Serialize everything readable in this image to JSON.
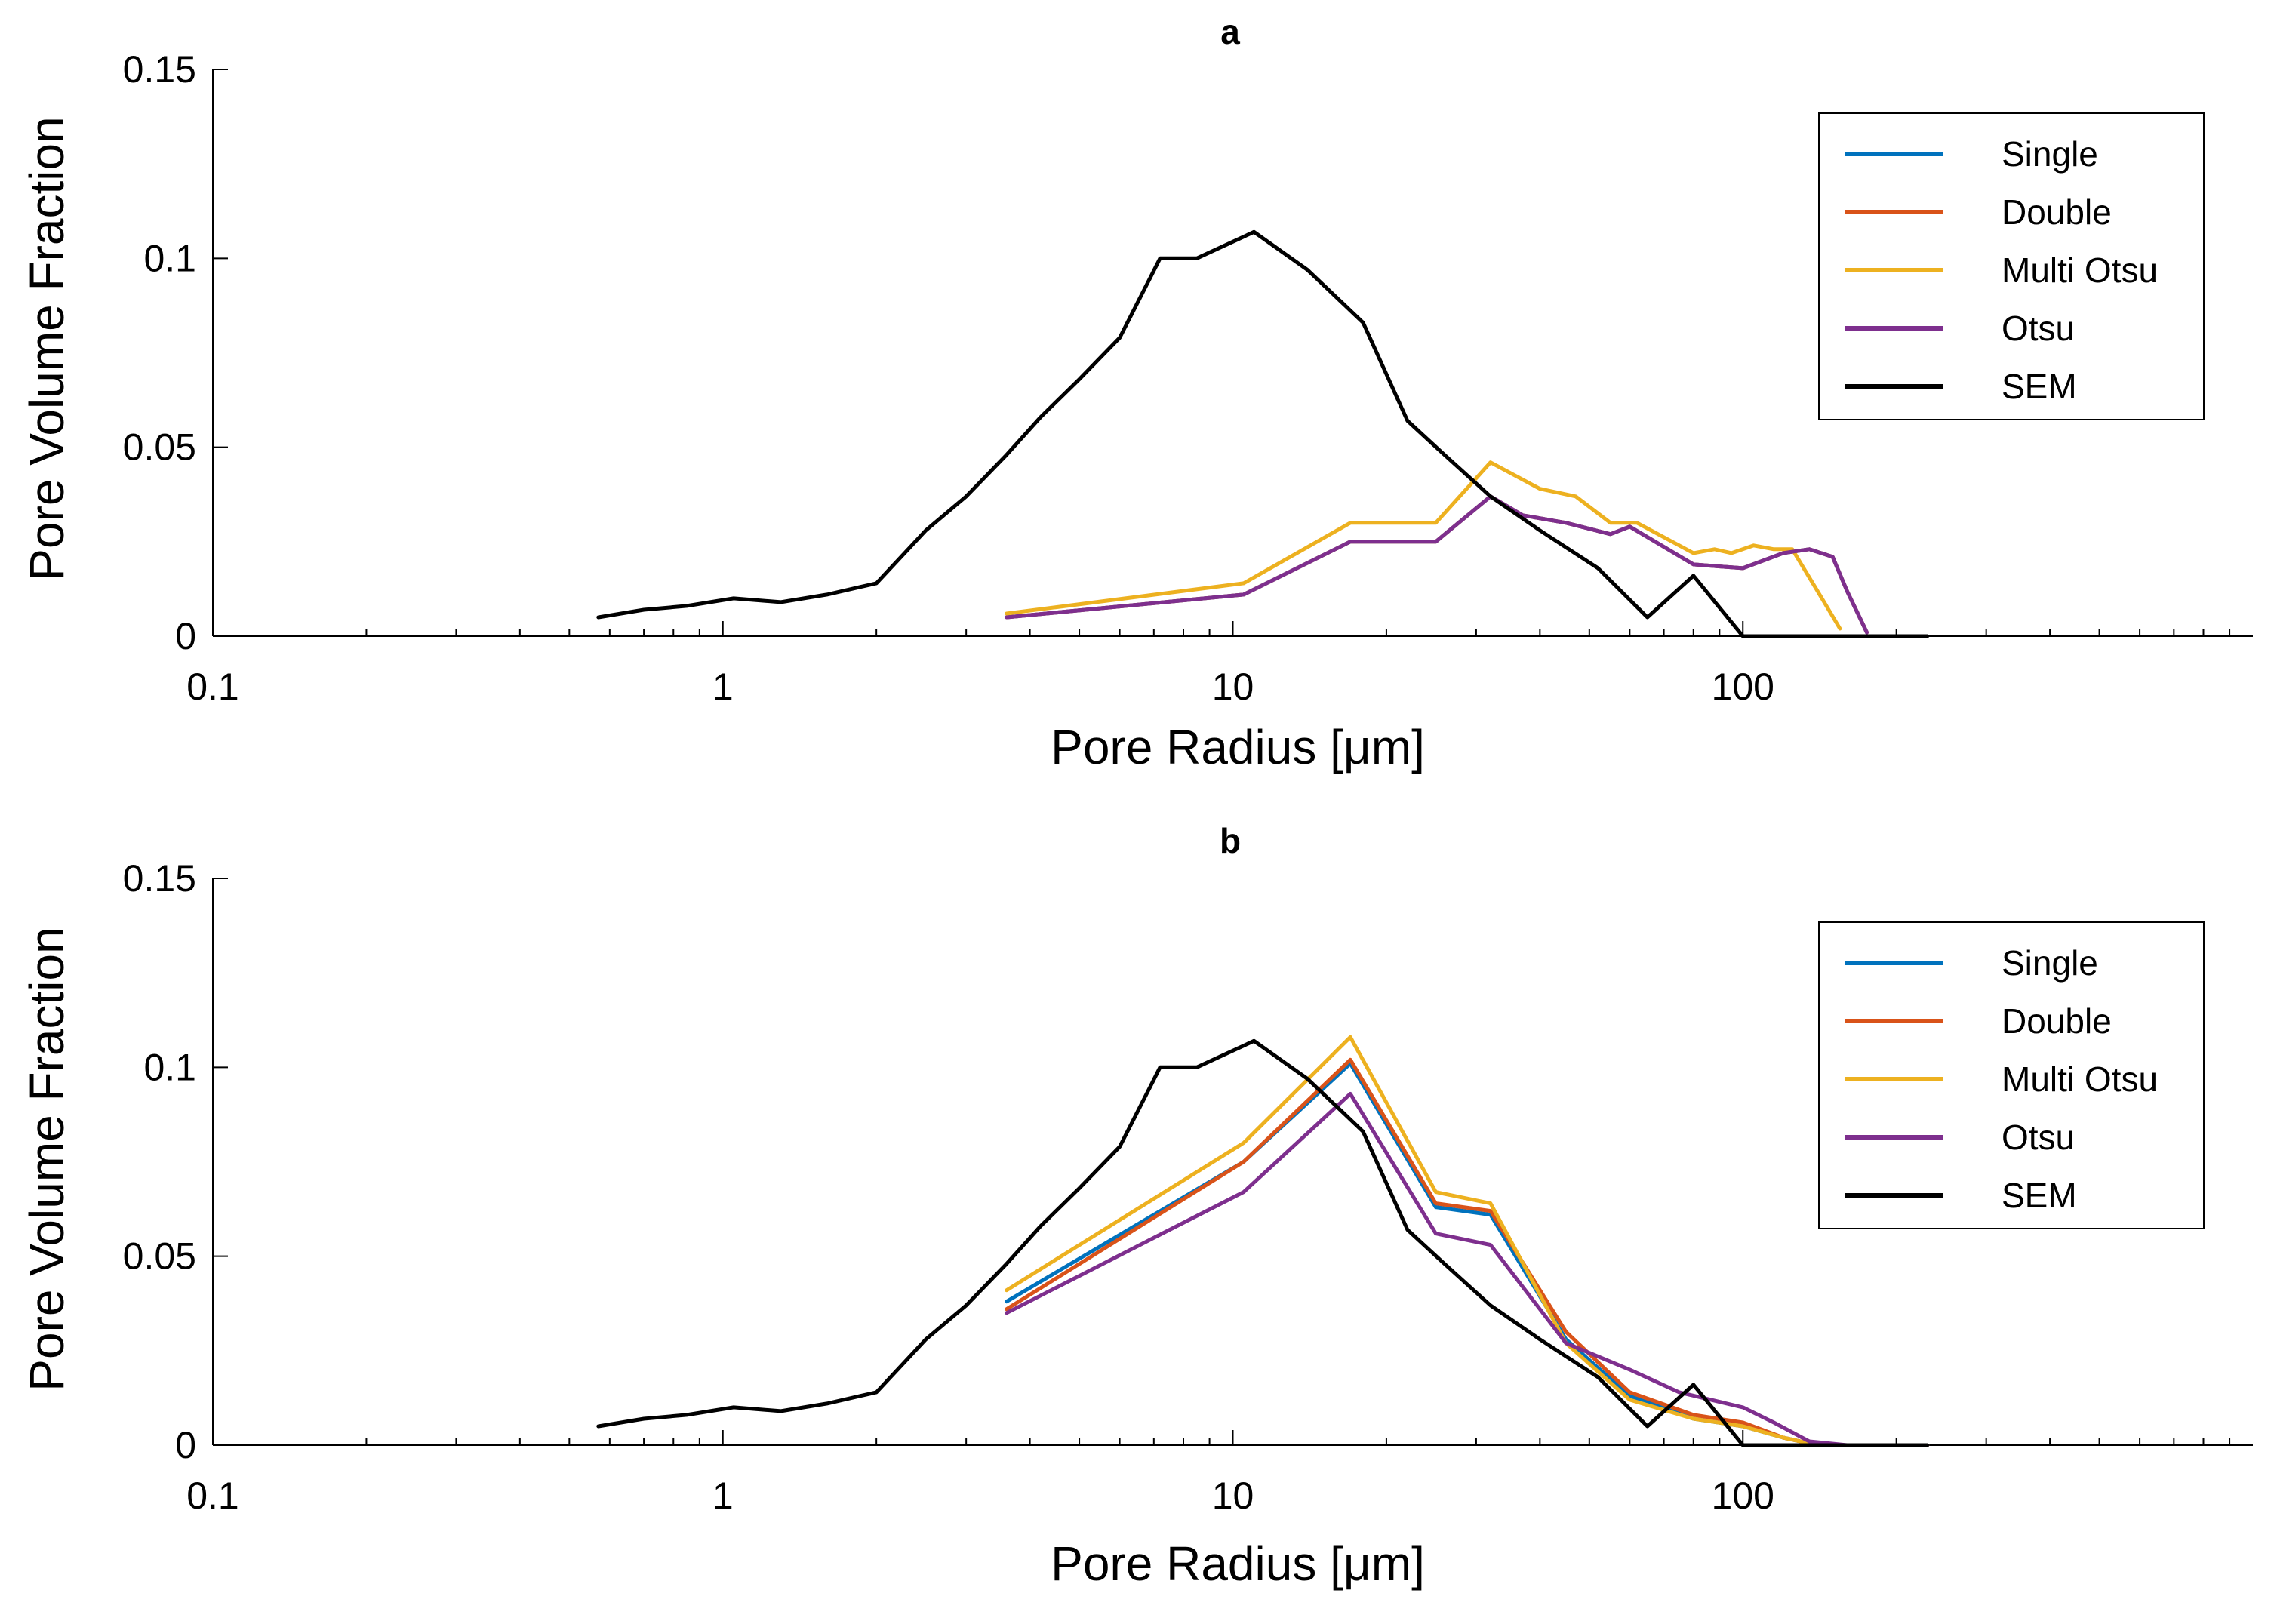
{
  "chart_data": [
    {
      "type": "line",
      "title": "a",
      "xlabel": "Pore Radius [μm]",
      "ylabel": "Pore Volume Fraction",
      "xscale": "log",
      "xlim": [
        0.1,
        1000
      ],
      "ylim": [
        0,
        0.15
      ],
      "xticks": [
        "0.1",
        "1",
        "10",
        "100"
      ],
      "yticks": [
        "0",
        "0.05",
        "0.1",
        "0.15"
      ],
      "legend_position": "top-right",
      "series": [
        {
          "name": "Single",
          "color": "#0072BD",
          "x": [
            3.6,
            10.5,
            17,
            25,
            32,
            37,
            45,
            55,
            60,
            80,
            100,
            120,
            135,
            150,
            160,
            175
          ],
          "y": [
            0.005,
            0.011,
            0.025,
            0.025,
            0.037,
            0.032,
            0.03,
            0.027,
            0.029,
            0.019,
            0.018,
            0.022,
            0.023,
            0.021,
            0.012,
            0.001
          ]
        },
        {
          "name": "Double",
          "color": "#D95319",
          "x": [
            3.6,
            10.5,
            17,
            25,
            32,
            37,
            45,
            55,
            60,
            80,
            100,
            120,
            135,
            150,
            160,
            175
          ],
          "y": [
            0.005,
            0.011,
            0.025,
            0.025,
            0.037,
            0.032,
            0.03,
            0.027,
            0.029,
            0.019,
            0.018,
            0.022,
            0.023,
            0.021,
            0.012,
            0.001
          ]
        },
        {
          "name": "Multi Otsu",
          "color": "#EDB120",
          "x": [
            3.6,
            10.5,
            17,
            25,
            32,
            40,
            47,
            55,
            62,
            80,
            88,
            95,
            105,
            115,
            125,
            140,
            155
          ],
          "y": [
            0.006,
            0.014,
            0.03,
            0.03,
            0.046,
            0.039,
            0.037,
            0.03,
            0.03,
            0.022,
            0.023,
            0.022,
            0.024,
            0.023,
            0.023,
            0.012,
            0.002
          ]
        },
        {
          "name": "Otsu",
          "color": "#7E2F8E",
          "x": [
            3.6,
            10.5,
            17,
            25,
            32,
            37,
            45,
            55,
            60,
            80,
            100,
            120,
            135,
            150,
            160,
            175
          ],
          "y": [
            0.005,
            0.011,
            0.025,
            0.025,
            0.037,
            0.032,
            0.03,
            0.027,
            0.029,
            0.019,
            0.018,
            0.022,
            0.023,
            0.021,
            0.012,
            0.001
          ]
        },
        {
          "name": "SEM",
          "color": "#000000",
          "x": [
            0.57,
            0.7,
            0.85,
            1.05,
            1.3,
            1.6,
            2.0,
            2.5,
            3.0,
            3.6,
            4.2,
            5.0,
            6.0,
            7.2,
            8.5,
            11,
            14,
            18,
            22,
            26,
            32,
            40,
            52,
            65,
            80,
            100,
            120,
            150,
            180,
            230
          ],
          "y": [
            0.005,
            0.007,
            0.008,
            0.01,
            0.009,
            0.011,
            0.014,
            0.028,
            0.037,
            0.048,
            0.058,
            0.068,
            0.079,
            0.1,
            0.1,
            0.107,
            0.097,
            0.083,
            0.057,
            0.048,
            0.037,
            0.028,
            0.018,
            0.005,
            0.016,
            0.0,
            0.0,
            0.0,
            0.0,
            0.0
          ]
        }
      ]
    },
    {
      "type": "line",
      "title": "b",
      "xlabel": "Pore Radius [μm]",
      "ylabel": "Pore Volume Fraction",
      "xscale": "log",
      "xlim": [
        0.1,
        1000
      ],
      "ylim": [
        0,
        0.15
      ],
      "xticks": [
        "0.1",
        "1",
        "10",
        "100"
      ],
      "yticks": [
        "0",
        "0.05",
        "0.1",
        "0.15"
      ],
      "legend_position": "top-right",
      "series": [
        {
          "name": "Single",
          "color": "#0072BD",
          "x": [
            3.6,
            10.5,
            17,
            25,
            32,
            45,
            60,
            80,
            100,
            120,
            140,
            170,
            230
          ],
          "y": [
            0.038,
            0.075,
            0.101,
            0.063,
            0.061,
            0.028,
            0.013,
            0.007,
            0.005,
            0.002,
            0.0,
            0.0,
            0.0
          ]
        },
        {
          "name": "Double",
          "color": "#D95319",
          "x": [
            3.6,
            10.5,
            17,
            25,
            32,
            45,
            60,
            80,
            100,
            120,
            140,
            170,
            230
          ],
          "y": [
            0.036,
            0.075,
            0.102,
            0.064,
            0.062,
            0.03,
            0.014,
            0.008,
            0.006,
            0.002,
            0.0,
            0.0,
            0.0
          ]
        },
        {
          "name": "Multi Otsu",
          "color": "#EDB120",
          "x": [
            3.6,
            10.5,
            17,
            25,
            32,
            45,
            60,
            80,
            100,
            120,
            140,
            170,
            230
          ],
          "y": [
            0.041,
            0.08,
            0.108,
            0.067,
            0.064,
            0.027,
            0.012,
            0.007,
            0.005,
            0.002,
            0.0,
            0.0,
            0.0
          ]
        },
        {
          "name": "Otsu",
          "color": "#7E2F8E",
          "x": [
            3.6,
            10.5,
            17,
            25,
            32,
            45,
            60,
            75,
            100,
            115,
            135,
            160,
            230
          ],
          "y": [
            0.035,
            0.067,
            0.093,
            0.056,
            0.053,
            0.027,
            0.02,
            0.014,
            0.01,
            0.006,
            0.001,
            0.0,
            0.0
          ]
        },
        {
          "name": "SEM",
          "color": "#000000",
          "x": [
            0.57,
            0.7,
            0.85,
            1.05,
            1.3,
            1.6,
            2.0,
            2.5,
            3.0,
            3.6,
            4.2,
            5.0,
            6.0,
            7.2,
            8.5,
            11,
            14,
            18,
            22,
            26,
            32,
            40,
            52,
            65,
            80,
            100,
            120,
            150,
            180,
            230
          ],
          "y": [
            0.005,
            0.007,
            0.008,
            0.01,
            0.009,
            0.011,
            0.014,
            0.028,
            0.037,
            0.048,
            0.058,
            0.068,
            0.079,
            0.1,
            0.1,
            0.107,
            0.097,
            0.083,
            0.057,
            0.048,
            0.037,
            0.028,
            0.018,
            0.005,
            0.016,
            0.0,
            0.0,
            0.0,
            0.0,
            0.0
          ]
        }
      ]
    }
  ]
}
